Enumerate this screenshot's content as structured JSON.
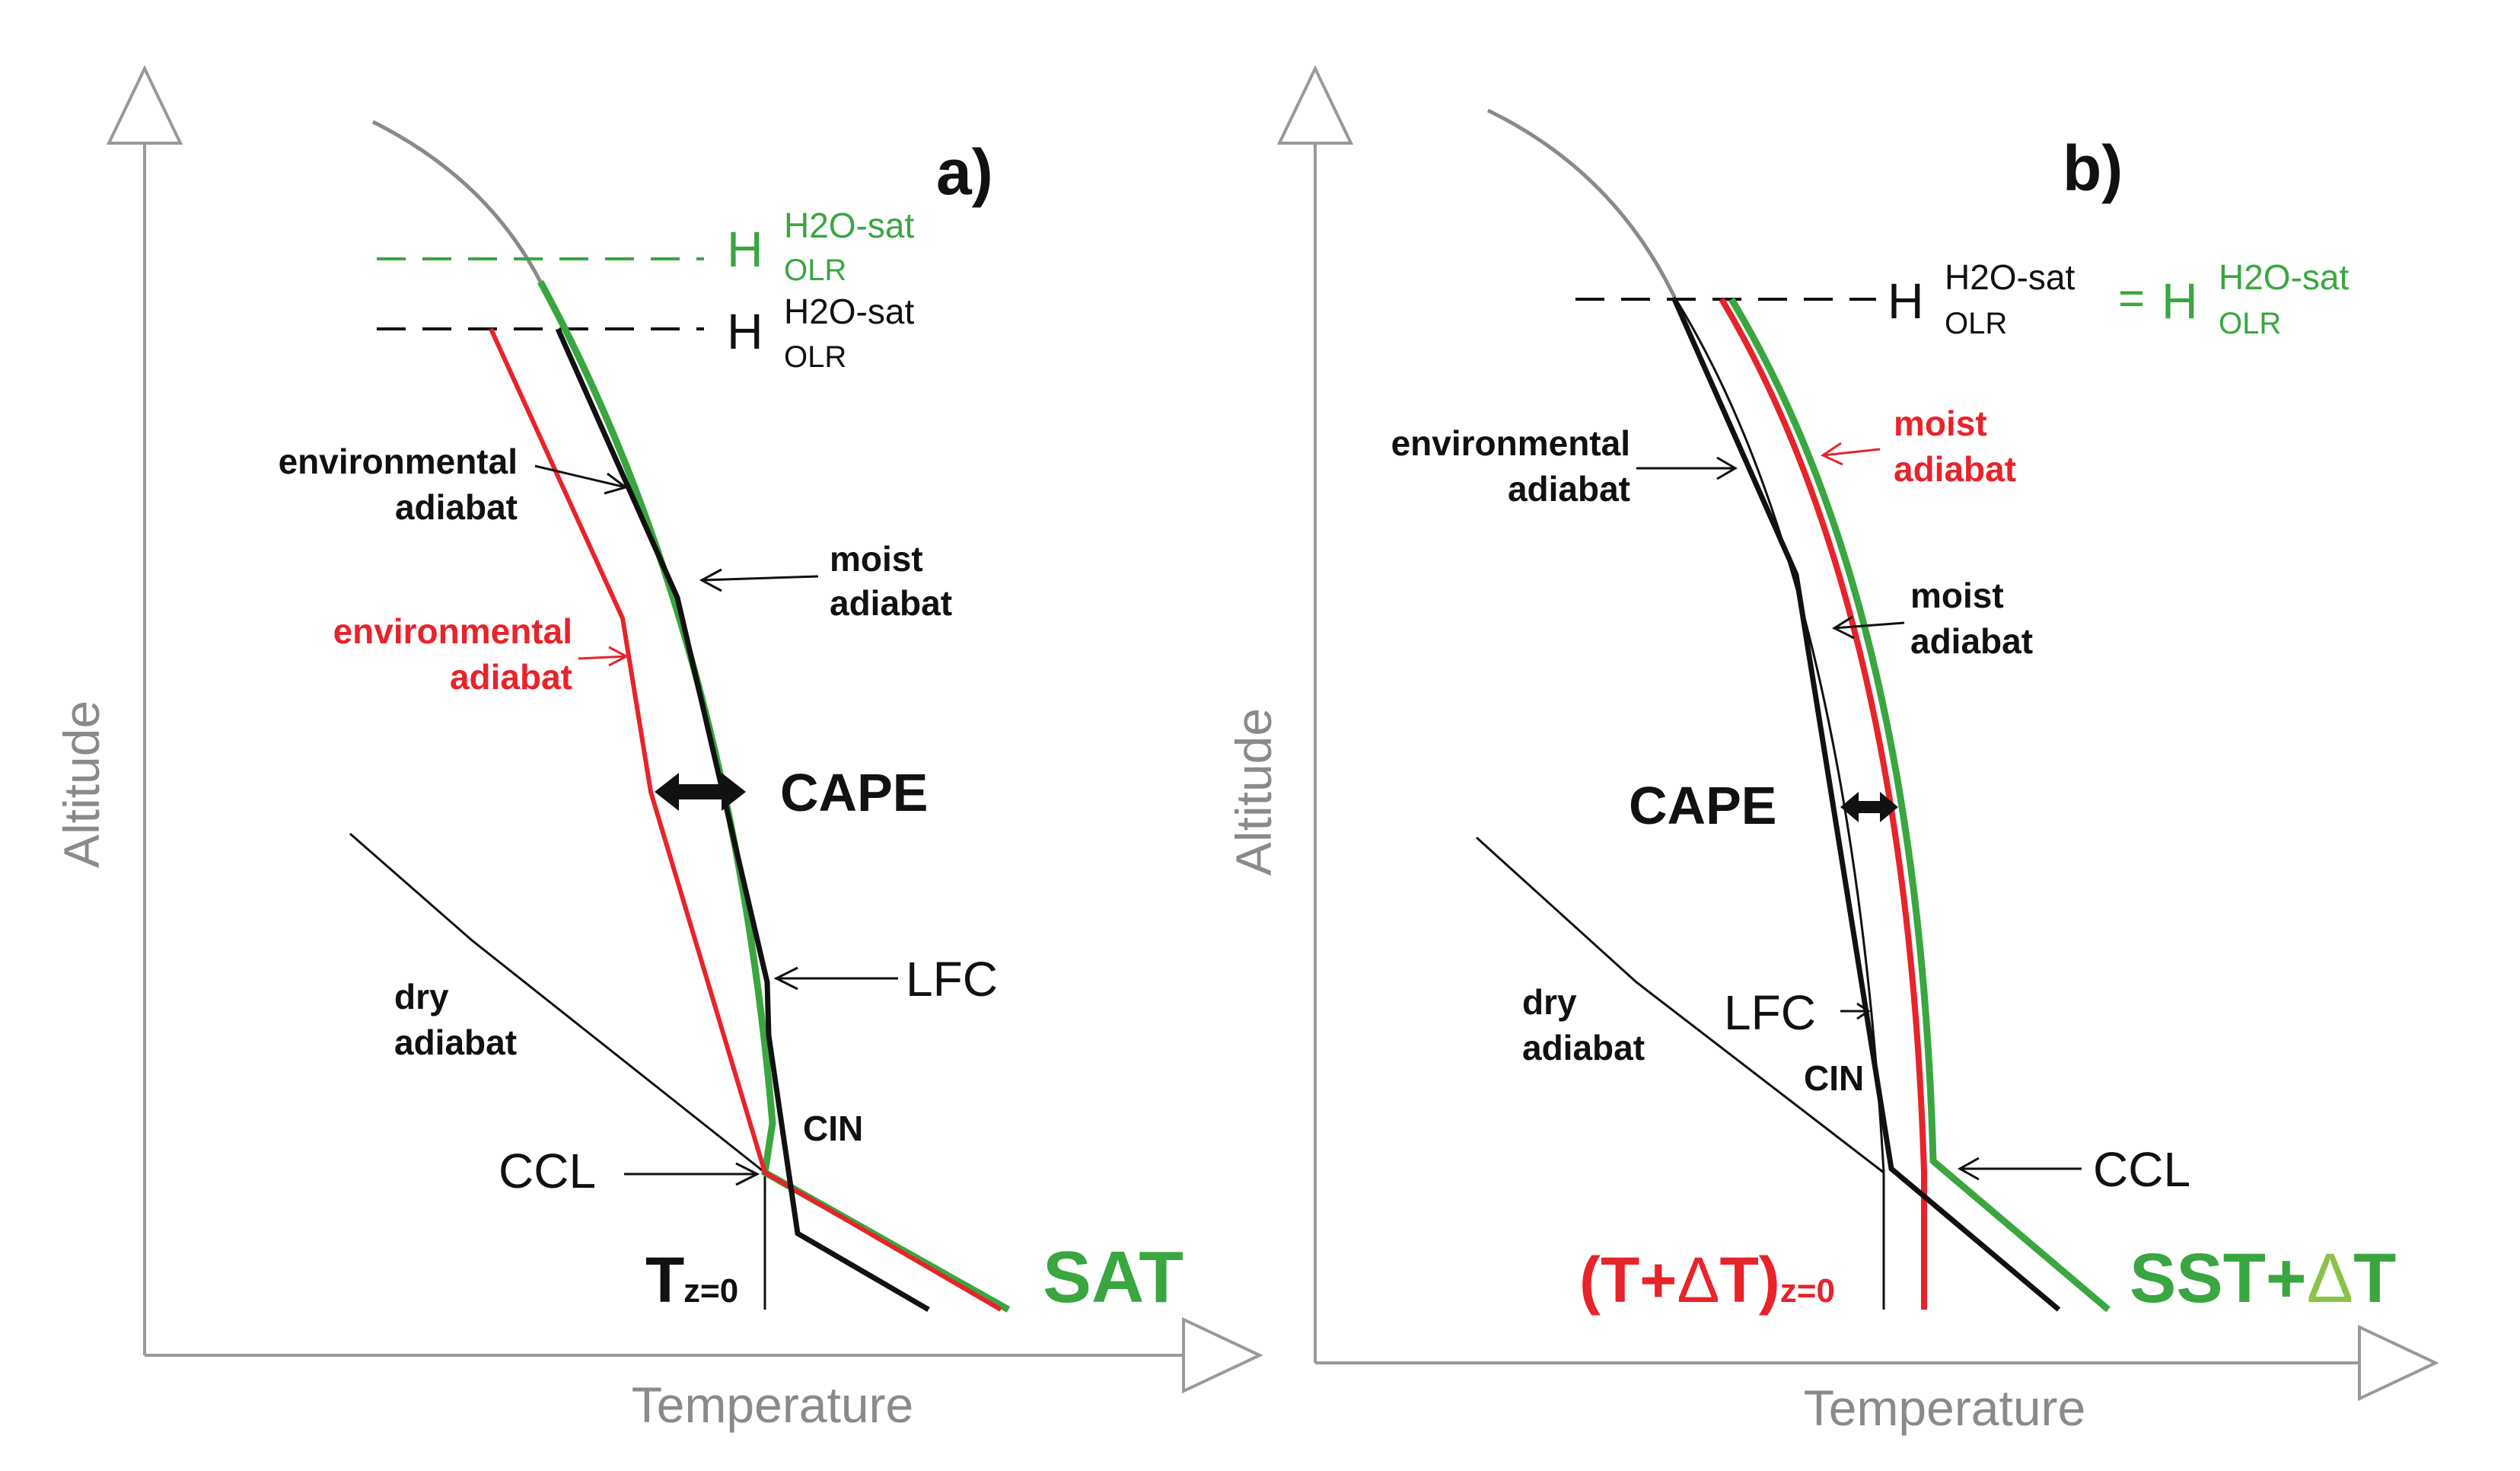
{
  "colors": {
    "black": "#111111",
    "red": "#e8232a",
    "green": "#3aa640",
    "gray": "#8a8a8a",
    "axis": "#999999"
  },
  "panel_a": {
    "tag": "a)",
    "x_axis": "Temperature",
    "y_axis": "Altitude",
    "h_sym": "H",
    "h_sup": "H2O-sat",
    "h_sub": "OLR",
    "env_black_line1": "environmental",
    "env_black_line2": "adiabat",
    "env_red_line1": "environmental",
    "env_red_line2": "adiabat",
    "moist_line1": "moist",
    "moist_line2": "adiabat",
    "cape": "CAPE",
    "lfc": "LFC",
    "dry_line1": "dry",
    "dry_line2": "adiabat",
    "cin": "CIN",
    "ccl": "CCL",
    "t_main": "T",
    "t_sub": "z=0",
    "sat": "SAT"
  },
  "panel_b": {
    "tag": "b)",
    "x_axis": "Temperature",
    "y_axis": "Altitude",
    "h_sym": "H",
    "h_sup": "H2O-sat",
    "h_sub": "OLR",
    "eq": "=",
    "env_line1": "environmental",
    "env_line2": "adiabat",
    "moist_red_line1": "moist",
    "moist_red_line2": "adiabat",
    "moist_line1": "moist",
    "moist_line2": "adiabat",
    "cape": "CAPE",
    "lfc": "LFC",
    "dry_line1": "dry",
    "dry_line2": "adiabat",
    "cin": "CIN",
    "ccl": "CCL",
    "t_expr": "(T+",
    "t_delta": "Δ",
    "t_t": "T)",
    "t_sub": "z=0",
    "sst": "SST+",
    "sst_delta": "Δ",
    "sst_t": "T"
  }
}
